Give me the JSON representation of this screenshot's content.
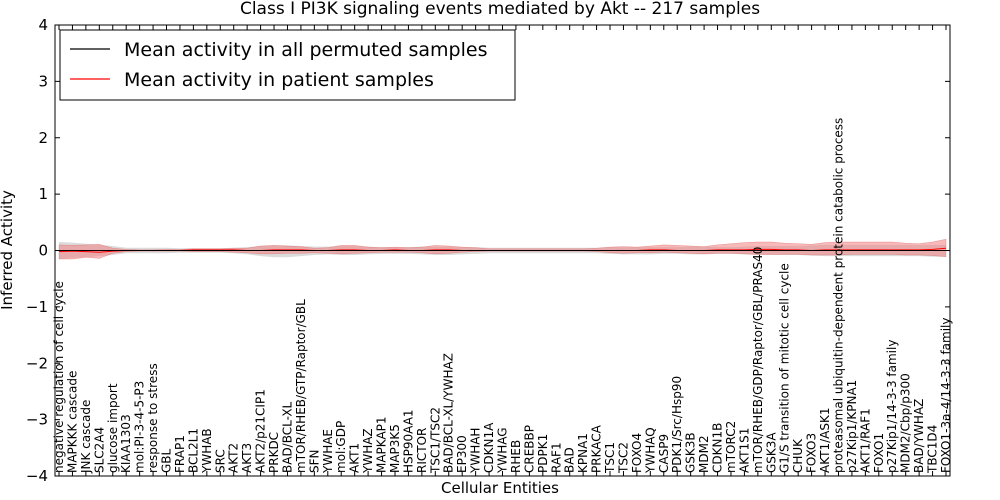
{
  "chart_data": {
    "type": "line",
    "title": "Class I PI3K signaling events mediated by Akt -- 217 samples",
    "xlabel": "Cellular Entities",
    "ylabel": "Inferred Activity",
    "ylim": [
      -4,
      4
    ],
    "yticks": [
      "4",
      "3",
      "2",
      "1",
      "0",
      "−1",
      "−2",
      "−3",
      "−4"
    ],
    "grid": false,
    "legend_position": "top-left",
    "colors": {
      "permuted": "#000000",
      "patient": "#ff0000",
      "patient_band": "#f08080",
      "permuted_band": "#b0b0b0"
    },
    "categories": [
      "negative regulation of cell cycle",
      "MAPKKK cascade",
      "JNK cascade",
      "SLC2A4",
      "glucose import",
      "KIAA1303",
      "mol:PI-3-4-5-P3",
      "response to stress",
      "GBL",
      "FRAP1",
      "BCL2L1",
      "YWHAB",
      "SRC",
      "AKT2",
      "AKT3",
      "AKT2/p21CIP1",
      "PRKDC",
      "BAD/BCL-XL",
      "mTOR/RHEB/GTP/Raptor/GBL",
      "SFN",
      "YWHAE",
      "mol:GDP",
      "AKT1",
      "YWHAZ",
      "MAPKAP1",
      "MAP3K5",
      "HSP90AA1",
      "RICTOR",
      "TSC1/TSC2",
      "BAD/BCL-XL/YWHAZ",
      "EP300",
      "YWHAH",
      "CDKN1A",
      "YWHAG",
      "RHEB",
      "CREBBP",
      "PDPK1",
      "RAF1",
      "BAD",
      "KPNA1",
      "PRKACA",
      "TSC1",
      "TSC2",
      "FOXO4",
      "YWHAQ",
      "CASP9",
      "PDK1/Src/Hsp90",
      "GSK3B",
      "MDM2",
      "CDKN1B",
      "mTORC2",
      "AKT1S1",
      "mTOR/RHEB/GDP/Raptor/GBL/PRAS40",
      "GSK3A",
      "G1/S transition of mitotic cell cycle",
      "CHUK",
      "FOXO3",
      "AKT1/ASK1",
      "proteasomal ubiquitin-dependent protein catabolic process",
      "p27Kip1/KPNA1",
      "AKT1/RAF1",
      "FOXO1",
      "p27Kip1/14-3-3 family",
      "MDM2/Cbp/p300",
      "BAD/YWHAZ",
      "TBC1D4",
      "FOXO1-3a-4/14-3-3 family"
    ],
    "series": [
      {
        "name": "Mean activity in all permuted samples",
        "values": [
          0,
          0,
          0,
          0,
          0,
          0,
          0,
          0,
          0,
          0,
          0,
          0,
          0,
          0,
          0,
          0,
          0,
          0,
          0,
          0,
          0,
          0,
          0,
          0,
          0,
          0,
          0,
          0,
          0,
          0,
          0,
          0,
          0,
          0,
          0,
          0,
          0,
          0,
          0,
          0,
          0,
          0,
          0,
          0,
          0,
          0,
          0,
          0,
          0,
          0,
          0,
          0,
          0,
          0,
          0,
          0,
          0,
          0,
          0,
          0,
          0,
          0,
          0,
          0,
          0,
          0,
          0
        ],
        "band_low": [
          -0.15,
          -0.13,
          -0.12,
          -0.1,
          -0.08,
          -0.05,
          -0.05,
          -0.05,
          -0.05,
          -0.04,
          -0.04,
          -0.04,
          -0.04,
          -0.05,
          -0.07,
          -0.1,
          -0.12,
          -0.12,
          -0.1,
          -0.08,
          -0.07,
          -0.08,
          -0.08,
          -0.07,
          -0.06,
          -0.06,
          -0.06,
          -0.07,
          -0.08,
          -0.08,
          -0.07,
          -0.06,
          -0.05,
          -0.05,
          -0.05,
          -0.05,
          -0.05,
          -0.05,
          -0.05,
          -0.05,
          -0.05,
          -0.06,
          -0.07,
          -0.07,
          -0.07,
          -0.06,
          -0.06,
          -0.07,
          -0.07,
          -0.06,
          -0.06,
          -0.07,
          -0.08,
          -0.08,
          -0.08,
          -0.08,
          -0.09,
          -0.1,
          -0.1,
          -0.1,
          -0.1,
          -0.1,
          -0.1,
          -0.1,
          -0.1,
          -0.11,
          -0.11
        ],
        "band_high": [
          0.15,
          0.14,
          0.12,
          0.1,
          0.08,
          0.05,
          0.05,
          0.05,
          0.05,
          0.04,
          0.04,
          0.04,
          0.04,
          0.05,
          0.06,
          0.08,
          0.09,
          0.09,
          0.08,
          0.07,
          0.07,
          0.08,
          0.08,
          0.07,
          0.06,
          0.06,
          0.06,
          0.07,
          0.07,
          0.07,
          0.06,
          0.06,
          0.05,
          0.05,
          0.05,
          0.05,
          0.05,
          0.05,
          0.05,
          0.05,
          0.05,
          0.06,
          0.06,
          0.06,
          0.06,
          0.06,
          0.06,
          0.07,
          0.07,
          0.06,
          0.06,
          0.07,
          0.08,
          0.08,
          0.08,
          0.08,
          0.09,
          0.1,
          0.1,
          0.1,
          0.1,
          0.1,
          0.1,
          0.1,
          0.1,
          0.1,
          0.1
        ]
      },
      {
        "name": "Mean activity in patient samples",
        "values": [
          -0.02,
          -0.01,
          -0.02,
          -0.03,
          -0.01,
          0.0,
          0.0,
          0.0,
          0.0,
          0.0,
          0.01,
          0.01,
          0.01,
          0.01,
          0.0,
          0.0,
          0.01,
          0.01,
          0.01,
          0.0,
          0.0,
          0.01,
          0.01,
          0.0,
          0.0,
          0.01,
          0.0,
          0.0,
          0.01,
          0.01,
          0.0,
          0.0,
          0.0,
          0.0,
          0.0,
          0.0,
          0.0,
          0.0,
          0.0,
          0.0,
          0.0,
          0.0,
          0.0,
          0.0,
          0.01,
          0.01,
          0.0,
          0.0,
          0.0,
          0.01,
          0.01,
          0.01,
          0.02,
          0.02,
          0.01,
          0.01,
          0.0,
          0.01,
          0.01,
          0.01,
          0.01,
          0.01,
          0.01,
          0.01,
          0.01,
          0.02,
          0.04
        ],
        "band_low": [
          -0.15,
          -0.15,
          -0.12,
          -0.14,
          -0.05,
          -0.02,
          -0.01,
          -0.01,
          -0.01,
          -0.01,
          -0.02,
          -0.02,
          -0.02,
          -0.03,
          -0.04,
          -0.06,
          -0.06,
          -0.05,
          -0.05,
          -0.04,
          -0.05,
          -0.06,
          -0.05,
          -0.04,
          -0.03,
          -0.03,
          -0.03,
          -0.04,
          -0.06,
          -0.05,
          -0.03,
          -0.02,
          -0.01,
          -0.01,
          -0.01,
          -0.01,
          -0.01,
          -0.01,
          -0.01,
          -0.01,
          -0.02,
          -0.04,
          -0.05,
          -0.04,
          -0.04,
          -0.03,
          -0.04,
          -0.05,
          -0.06,
          -0.05,
          -0.05,
          -0.06,
          -0.07,
          -0.07,
          -0.07,
          -0.07,
          -0.08,
          -0.08,
          -0.08,
          -0.07,
          -0.07,
          -0.07,
          -0.07,
          -0.08,
          -0.08,
          -0.09,
          -0.11
        ],
        "band_high": [
          0.1,
          0.09,
          0.1,
          0.11,
          0.04,
          0.02,
          0.01,
          0.01,
          0.02,
          0.02,
          0.03,
          0.03,
          0.03,
          0.04,
          0.04,
          0.08,
          0.09,
          0.08,
          0.07,
          0.04,
          0.05,
          0.09,
          0.09,
          0.06,
          0.05,
          0.06,
          0.05,
          0.06,
          0.09,
          0.08,
          0.06,
          0.05,
          0.03,
          0.03,
          0.03,
          0.03,
          0.03,
          0.03,
          0.03,
          0.03,
          0.04,
          0.06,
          0.07,
          0.06,
          0.08,
          0.1,
          0.09,
          0.08,
          0.07,
          0.1,
          0.12,
          0.14,
          0.15,
          0.15,
          0.13,
          0.12,
          0.11,
          0.14,
          0.15,
          0.15,
          0.15,
          0.15,
          0.15,
          0.13,
          0.12,
          0.15,
          0.2
        ]
      }
    ]
  }
}
